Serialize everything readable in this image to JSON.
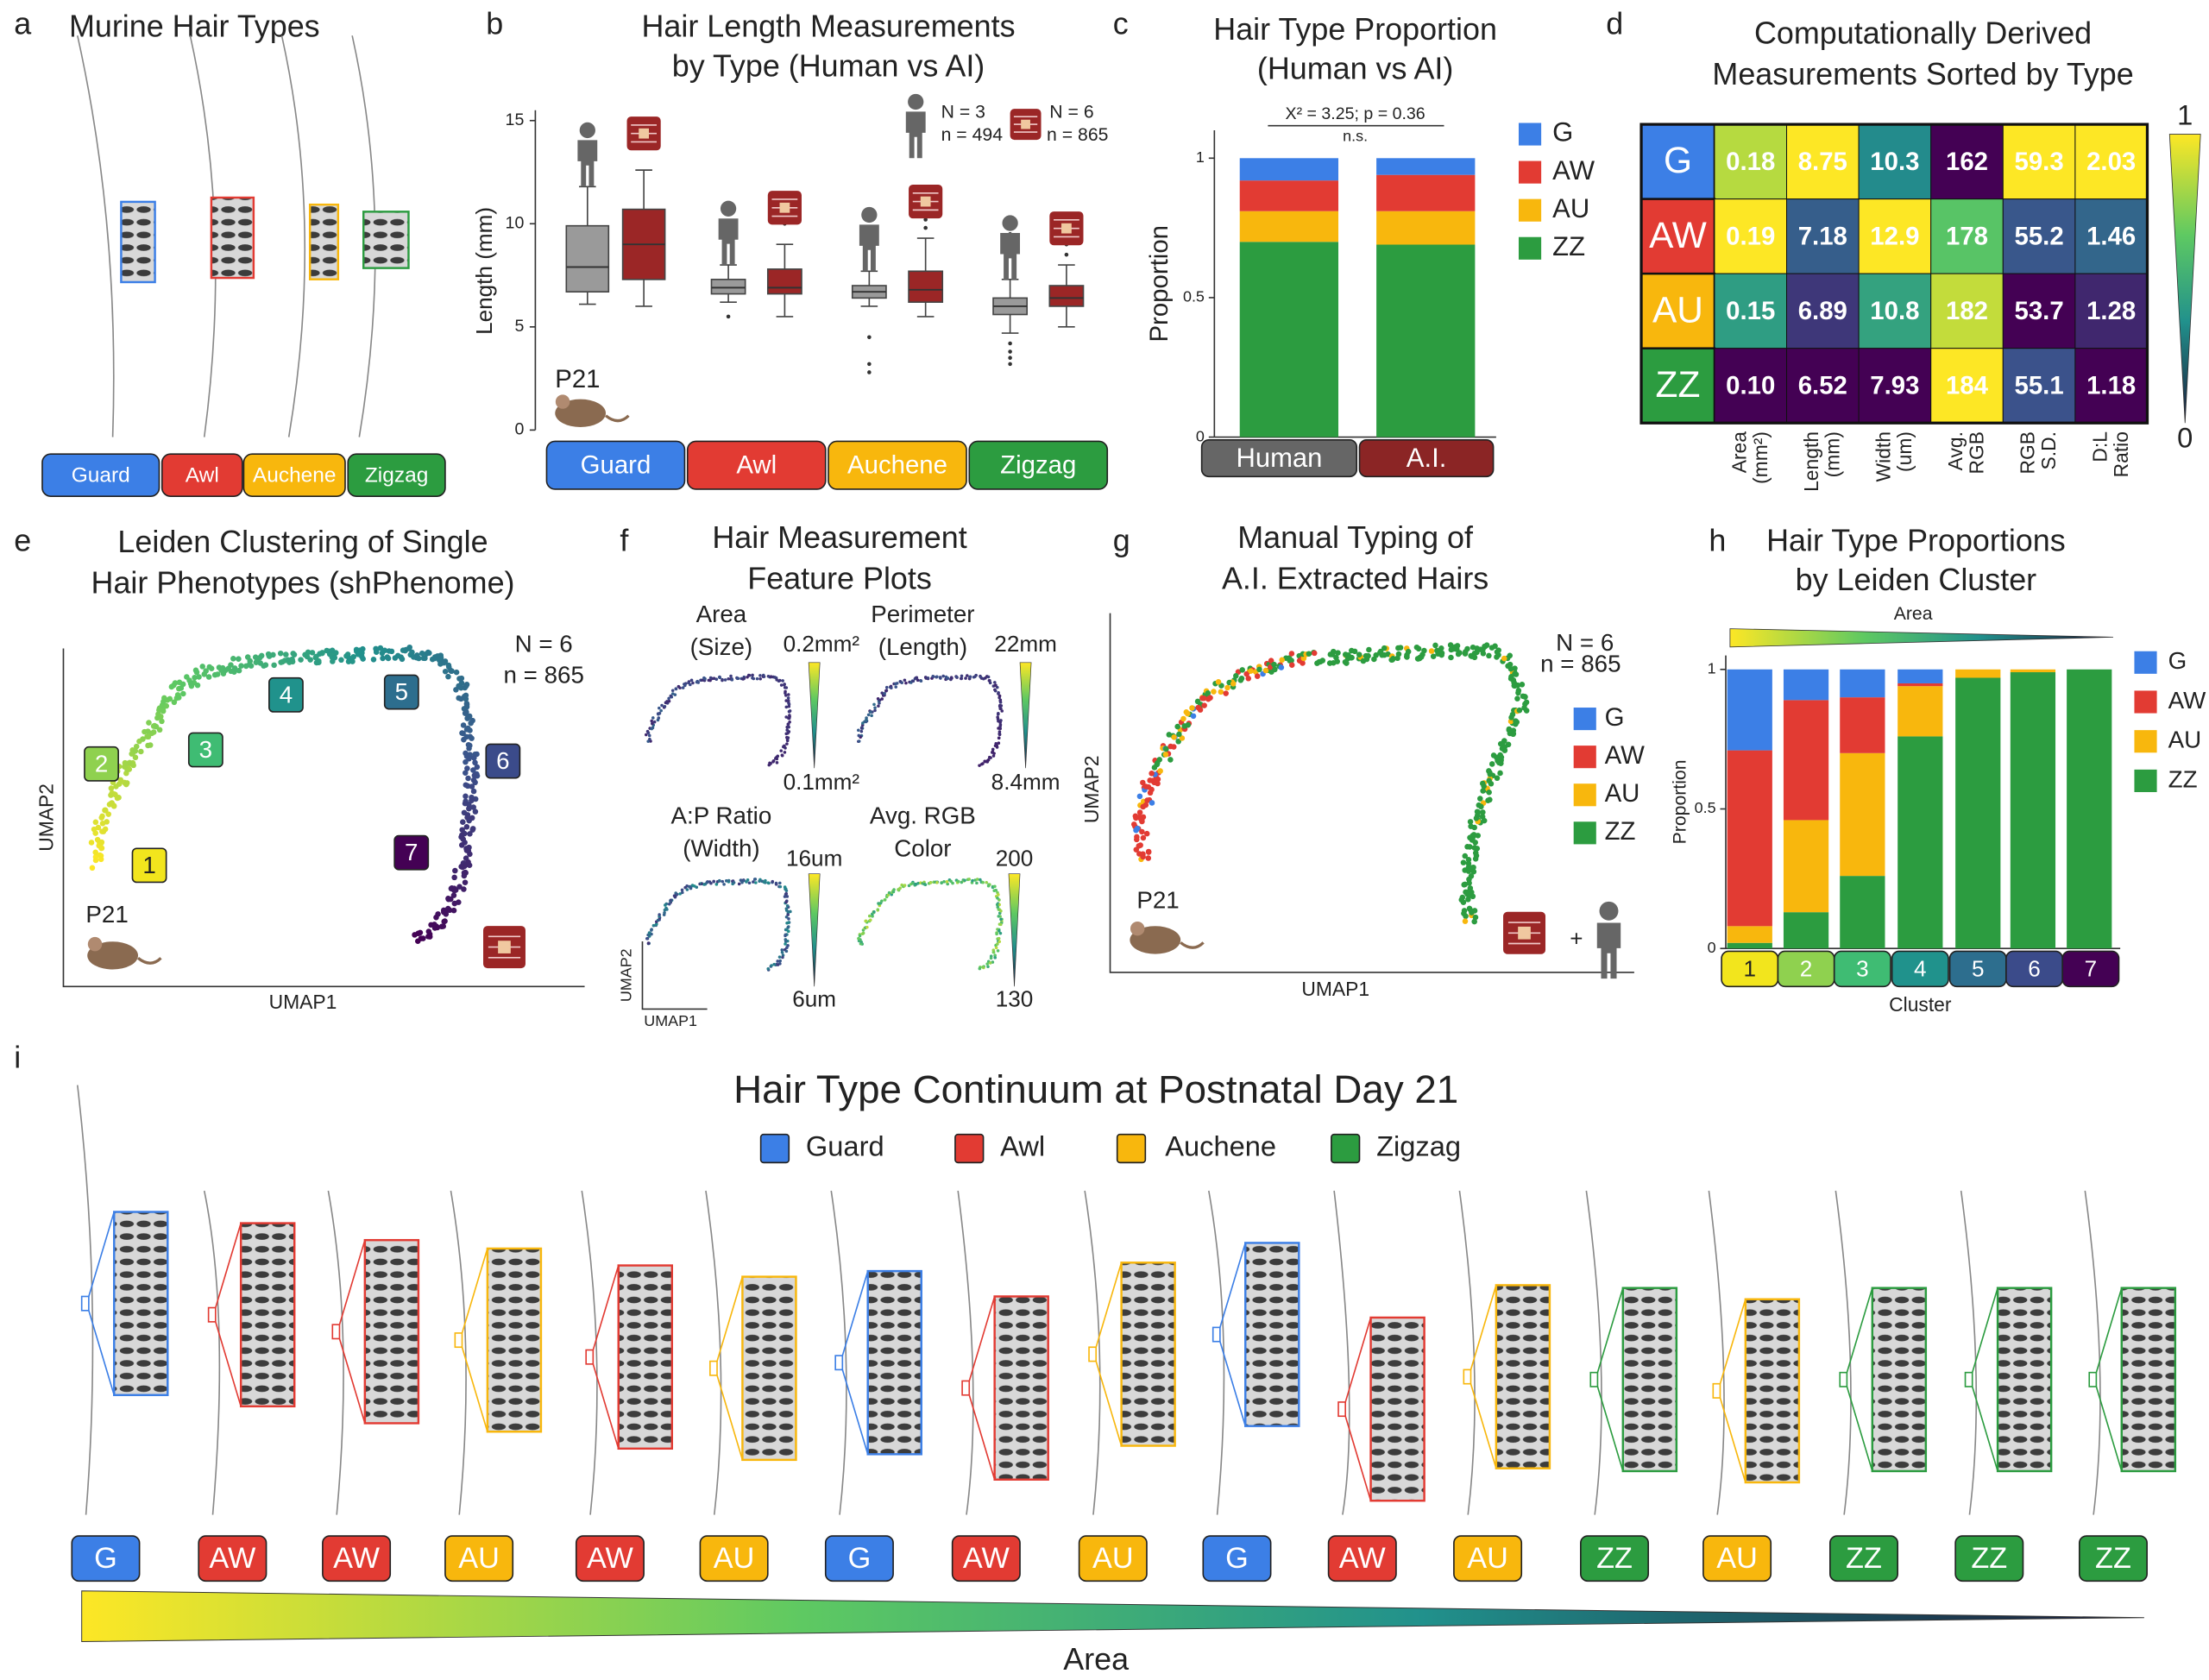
{
  "figure": {
    "panel_labels": [
      "a",
      "b",
      "c",
      "d",
      "e",
      "f",
      "g",
      "h",
      "i"
    ],
    "colors": {
      "G": "#3c7fe6",
      "AW": "#e23b33",
      "AU": "#f8b70d",
      "ZZ": "#2c9c40"
    },
    "a": {
      "title": "Murine Hair Types",
      "types": [
        "Guard",
        "Awl",
        "Auchene",
        "Zigzag"
      ]
    },
    "e": {
      "title": [
        "Leiden Clustering of Single",
        "Hair Phenotypes (shPhenome)"
      ],
      "N": "N = 6",
      "n": "n = 865",
      "clusters": [
        "1",
        "2",
        "3",
        "4",
        "5",
        "6",
        "7"
      ],
      "age": "P21",
      "xlabel": "UMAP1",
      "ylabel": "UMAP2"
    },
    "f": {
      "title": [
        "Hair Measurement",
        "Feature Plots"
      ],
      "plots": [
        {
          "title": [
            "Area",
            "(Size)"
          ],
          "max": "0.2mm²",
          "min": "0.1mm²"
        },
        {
          "title": [
            "Perimeter",
            "(Length)"
          ],
          "max": "22mm",
          "min": "8.4mm"
        },
        {
          "title": [
            "A:P Ratio",
            "(Width)"
          ],
          "max": "16um",
          "min": "6um"
        },
        {
          "title": [
            "Avg. RGB",
            "Color"
          ],
          "max": "200",
          "min": "130"
        }
      ],
      "xlabel": "UMAP1",
      "ylabel": "UMAP2"
    },
    "g": {
      "title": [
        "Manual Typing of",
        "A.I. Extracted Hairs"
      ],
      "N": "N = 6",
      "n": "n = 865",
      "legend": [
        "G",
        "AW",
        "AU",
        "ZZ"
      ],
      "age": "P21",
      "xlabel": "UMAP1",
      "ylabel": "UMAP2",
      "plus": "+"
    },
    "i": {
      "title": "Hair Type Continuum at Postnatal Day 21",
      "legend": [
        "Guard",
        "Awl",
        "Auchene",
        "Zigzag"
      ],
      "sequence": [
        "G",
        "AW",
        "AW",
        "AU",
        "AW",
        "AU",
        "G",
        "AW",
        "AU",
        "G",
        "AW",
        "AU",
        "ZZ",
        "AU",
        "ZZ",
        "ZZ",
        "ZZ"
      ],
      "axis": "Area"
    }
  },
  "chart_data": [
    {
      "type": "box",
      "title": [
        "Hair Length Measurements",
        "by Type (Human vs AI)"
      ],
      "ylabel": "Length (mm)",
      "categories": [
        "Guard",
        "Awl",
        "Auchene",
        "Zigzag"
      ],
      "category_colors": [
        "#3c7fe6",
        "#e23b33",
        "#f8b70d",
        "#2c9c40"
      ],
      "ylim": [
        0,
        15.5
      ],
      "yticks": [
        0,
        5,
        10,
        15
      ],
      "series": [
        {
          "color": "#9a9a9a",
          "whisker_low": [
            6.1,
            6.2,
            6.0,
            4.7
          ],
          "q1": [
            6.7,
            6.6,
            6.4,
            5.6
          ],
          "median": [
            7.9,
            6.9,
            6.7,
            6.0
          ],
          "q3": [
            9.9,
            7.3,
            7.0,
            6.4
          ],
          "whisker_high": [
            11.8,
            8.0,
            7.7,
            7.3
          ],
          "outliers": [
            [],
            [
              5.5
            ],
            [
              4.5,
              3.2,
              2.8
            ],
            [
              4.2,
              3.8,
              3.5,
              3.2,
              9.5,
              10.0
            ]
          ]
        },
        {
          "color": "#9b2626",
          "whisker_low": [
            6.0,
            5.5,
            5.5,
            5.0
          ],
          "q1": [
            7.3,
            6.6,
            6.2,
            6.0
          ],
          "median": [
            9.0,
            6.9,
            6.8,
            6.4
          ],
          "q3": [
            10.7,
            7.8,
            7.7,
            7.0
          ],
          "whisker_high": [
            12.6,
            9.0,
            9.3,
            8.0
          ],
          "outliers": [
            [],
            [
              10.0,
              10.5,
              11.0
            ],
            [
              9.8,
              10.2
            ],
            [
              8.5,
              9.0
            ]
          ]
        }
      ],
      "legend": [
        {
          "N": "N = 3",
          "n": "n = 494"
        },
        {
          "N": "N = 6",
          "n": "n = 865"
        }
      ],
      "age": "P21"
    },
    {
      "type": "stacked_bar",
      "title": [
        "Hair Type Proportion",
        "(Human vs AI)"
      ],
      "ylabel": "Proportion",
      "annotation": "X² = 3.25; p = 0.36",
      "significance": "n.s.",
      "categories": [
        "Human",
        "A.I."
      ],
      "category_colors": [
        "#666666",
        "#8b2525"
      ],
      "ylim": [
        0,
        1.1
      ],
      "yticks": [
        0,
        0.5,
        1
      ],
      "series": [
        {
          "name": "G",
          "color": "#3c7fe6",
          "values": [
            0.08,
            0.06
          ]
        },
        {
          "name": "AW",
          "color": "#e23b33",
          "values": [
            0.11,
            0.13
          ]
        },
        {
          "name": "AU",
          "color": "#f8b70d",
          "values": [
            0.11,
            0.12
          ]
        },
        {
          "name": "ZZ",
          "color": "#2c9c40",
          "values": [
            0.7,
            0.69
          ]
        }
      ]
    },
    {
      "type": "heatmap",
      "title": [
        "Computationally Derived",
        "Measurements Sorted by Type"
      ],
      "rows": [
        "G",
        "AW",
        "AU",
        "ZZ"
      ],
      "row_colors": [
        "#3c7fe6",
        "#e23b33",
        "#f8b70d",
        "#2c9c40"
      ],
      "columns": [
        [
          "Area",
          "(mm²)"
        ],
        [
          "Length",
          "(mm)"
        ],
        [
          "Width",
          "(um)"
        ],
        [
          "Avg.",
          "RGB"
        ],
        [
          "RGB",
          "S.D."
        ],
        [
          "D:L",
          "Ratio"
        ]
      ],
      "values": [
        [
          0.18,
          8.75,
          10.3,
          162,
          59.3,
          2.03
        ],
        [
          0.19,
          7.18,
          12.9,
          178,
          55.2,
          1.46
        ],
        [
          0.15,
          6.89,
          10.8,
          182,
          53.7,
          1.28
        ],
        [
          0.1,
          6.52,
          7.93,
          184,
          55.1,
          1.18
        ]
      ],
      "value_labels": [
        [
          "0.18",
          "8.75",
          "10.3",
          "162",
          "59.3",
          "2.03"
        ],
        [
          "0.19",
          "7.18",
          "12.9",
          "178",
          "55.2",
          "1.46"
        ],
        [
          "0.15",
          "6.89",
          "10.8",
          "182",
          "53.7",
          "1.28"
        ],
        [
          "0.10",
          "6.52",
          "7.93",
          "184",
          "55.1",
          "1.18"
        ]
      ],
      "colorbar_ticks": [
        1,
        0
      ]
    },
    {
      "type": "stacked_bar",
      "title": [
        "Hair Type Proportions",
        "by Leiden Cluster"
      ],
      "xlabel": "Cluster",
      "ylabel": "Proportion",
      "gradient_label": "Area",
      "categories": [
        "1",
        "2",
        "3",
        "4",
        "5",
        "6",
        "7"
      ],
      "category_colors": [
        "#f2e51d",
        "#8fd14f",
        "#3fbc73",
        "#20928c",
        "#2d6e8e",
        "#3b4b8a",
        "#440154"
      ],
      "ylim": [
        0,
        1.05
      ],
      "yticks": [
        0,
        0.5,
        1
      ],
      "series": [
        {
          "name": "G",
          "color": "#3c7fe6",
          "values": [
            0.29,
            0.11,
            0.1,
            0.05,
            0,
            0,
            0
          ]
        },
        {
          "name": "AW",
          "color": "#e23b33",
          "values": [
            0.63,
            0.43,
            0.2,
            0.01,
            0,
            0,
            0
          ]
        },
        {
          "name": "AU",
          "color": "#f8b70d",
          "values": [
            0.06,
            0.33,
            0.44,
            0.18,
            0.03,
            0.01,
            0
          ]
        },
        {
          "name": "ZZ",
          "color": "#2c9c40",
          "values": [
            0.02,
            0.13,
            0.26,
            0.76,
            0.97,
            0.99,
            1.0
          ]
        }
      ]
    }
  ]
}
